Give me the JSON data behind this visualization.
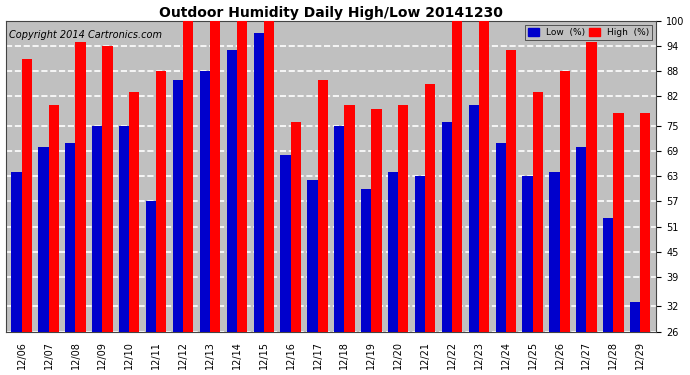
{
  "title": "Outdoor Humidity Daily High/Low 20141230",
  "copyright": "Copyright 2014 Cartronics.com",
  "dates": [
    "12/06",
    "12/07",
    "12/08",
    "12/09",
    "12/10",
    "12/11",
    "12/12",
    "12/13",
    "12/14",
    "12/15",
    "12/16",
    "12/17",
    "12/18",
    "12/19",
    "12/20",
    "12/21",
    "12/22",
    "12/23",
    "12/24",
    "12/25",
    "12/26",
    "12/27",
    "12/28",
    "12/29"
  ],
  "low": [
    64,
    70,
    71,
    75,
    75,
    57,
    86,
    88,
    93,
    97,
    68,
    62,
    75,
    60,
    64,
    63,
    76,
    80,
    71,
    63,
    64,
    70,
    53,
    33
  ],
  "high": [
    91,
    80,
    95,
    94,
    83,
    88,
    100,
    100,
    100,
    100,
    76,
    86,
    80,
    79,
    80,
    85,
    100,
    100,
    93,
    83,
    88,
    95,
    78,
    78
  ],
  "low_color": "#0000cc",
  "high_color": "#ff0000",
  "bg_color": "#ffffff",
  "plot_bg_color": "#c0c0c0",
  "grid_color": "#ffffff",
  "ymin": 26,
  "ymax": 100,
  "yticks": [
    26,
    32,
    39,
    45,
    51,
    57,
    63,
    69,
    75,
    82,
    88,
    94,
    100
  ],
  "legend_low_label": "Low  (%)",
  "legend_high_label": "High  (%)",
  "bar_width": 0.38,
  "title_fontsize": 10,
  "tick_fontsize": 7,
  "copyright_fontsize": 7
}
